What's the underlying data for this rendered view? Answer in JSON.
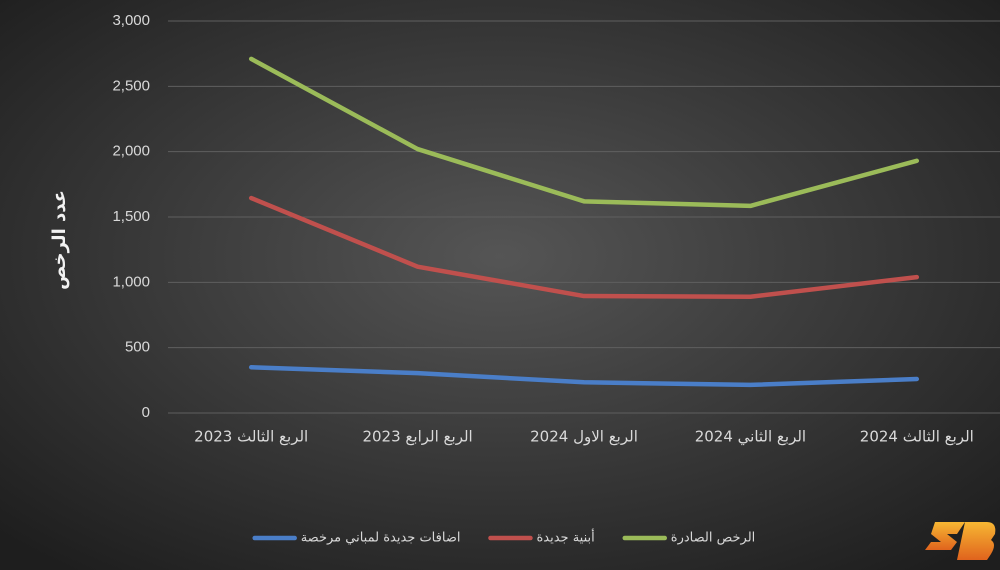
{
  "chart_data": {
    "type": "line",
    "y_label": "عدد الرخص",
    "categories": [
      "الربع الثالث 2023",
      "الربع الرابع 2023",
      "الربع الاول 2024",
      "الربع الثاني 2024",
      "الربع الثالث 2024"
    ],
    "series": [
      {
        "name": "اضافات جديدة لمباني مرخصة",
        "color": "#4a7ec8",
        "values": [
          350,
          305,
          235,
          215,
          260
        ]
      },
      {
        "name": "أبنية جديدة",
        "color": "#c0504d",
        "values": [
          1645,
          1120,
          895,
          890,
          1040
        ]
      },
      {
        "name": "الرخص الصادرة",
        "color": "#9bbb59",
        "values": [
          2710,
          2020,
          1620,
          1585,
          1930
        ]
      }
    ],
    "ylim": [
      0,
      3000
    ],
    "yticks": [
      0,
      500,
      {
        "value": 1000,
        "label": "1,000"
      },
      {
        "value": 1500,
        "label": "1,500"
      },
      {
        "value": 2000,
        "label": "2,000"
      },
      {
        "value": 2500,
        "label": "2,500"
      },
      {
        "value": 3000,
        "label": "3,000"
      }
    ],
    "grid": true
  }
}
